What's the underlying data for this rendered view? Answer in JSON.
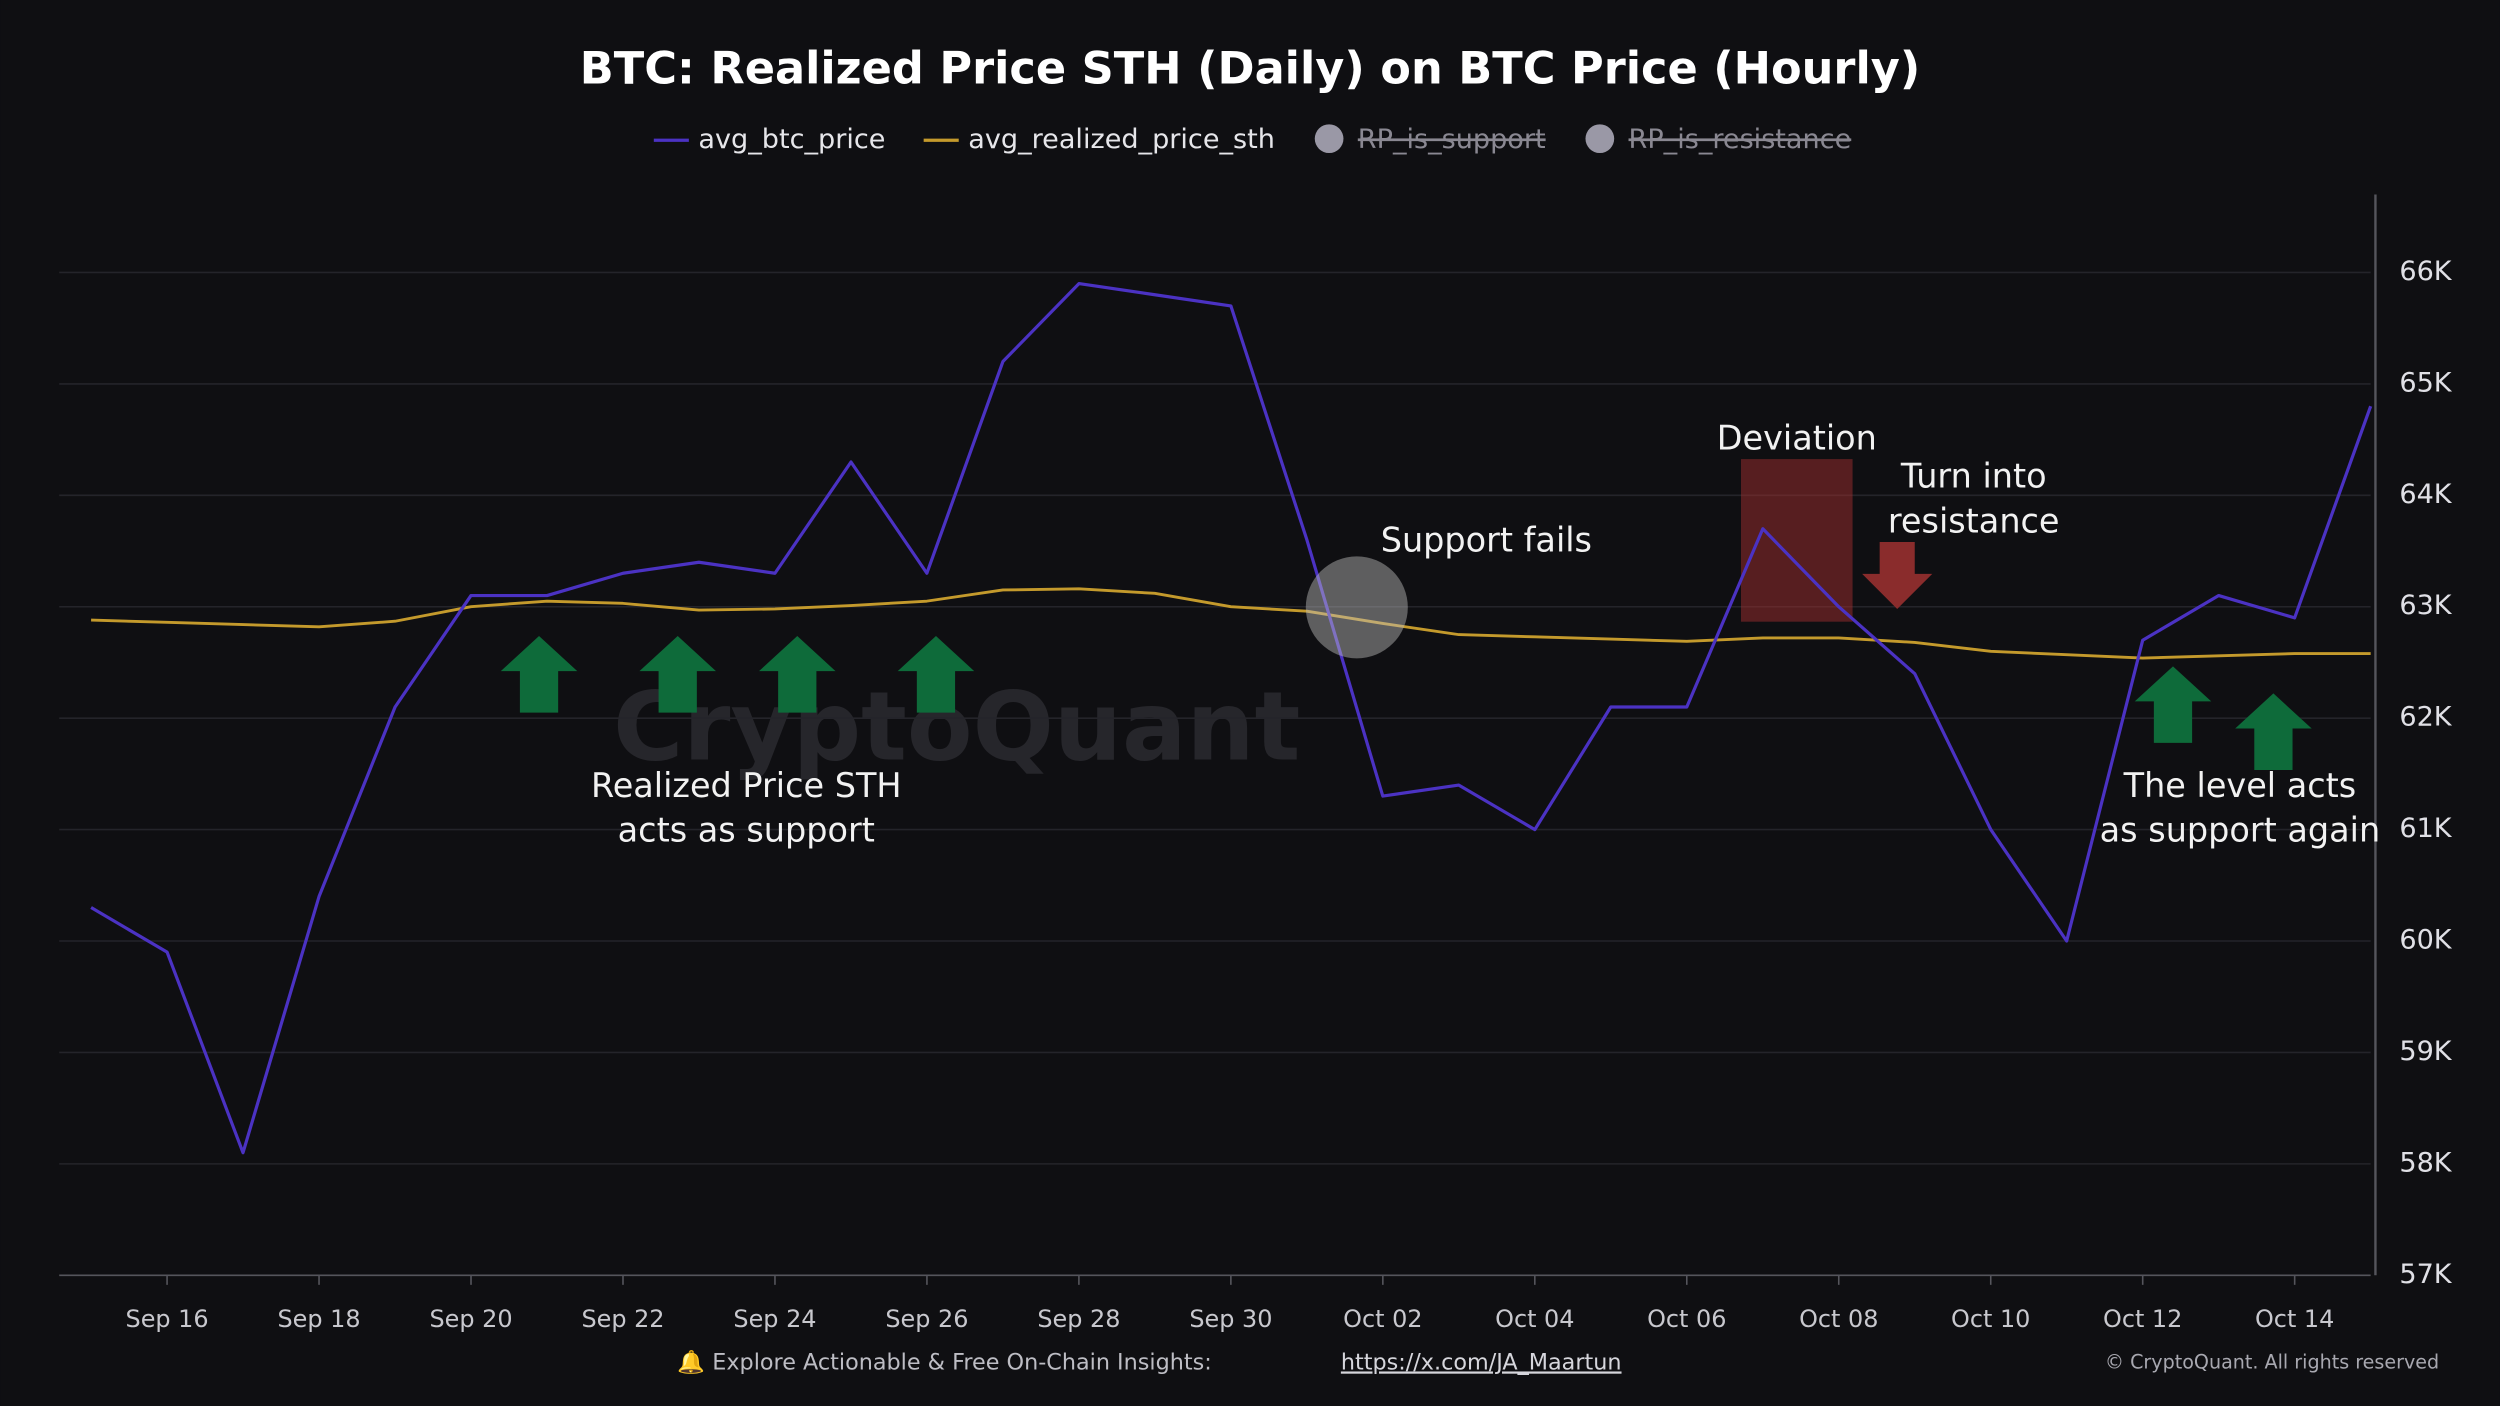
{
  "chart_data": {
    "type": "line",
    "title": "BTC: Realized Price STH (Daily) on BTC Price (Hourly)",
    "x": [
      "Sep 15",
      "Sep 16",
      "Sep 17",
      "Sep 18",
      "Sep 19",
      "Sep 20",
      "Sep 21",
      "Sep 22",
      "Sep 23",
      "Sep 24",
      "Sep 25",
      "Sep 26",
      "Sep 27",
      "Sep 28",
      "Sep 29",
      "Sep 30",
      "Oct 01",
      "Oct 02",
      "Oct 03",
      "Oct 04",
      "Oct 05",
      "Oct 06",
      "Oct 07",
      "Oct 08",
      "Oct 09",
      "Oct 10",
      "Oct 11",
      "Oct 12",
      "Oct 13",
      "Oct 14",
      "Oct 15"
    ],
    "series": [
      {
        "name": "avg_btc_price",
        "color": "#4b32c3",
        "values": [
          60300,
          59900,
          58100,
          60400,
          62100,
          63100,
          63100,
          63300,
          63400,
          63300,
          64300,
          63300,
          65200,
          65900,
          65800,
          65700,
          63600,
          61300,
          61400,
          61000,
          62100,
          62100,
          63700,
          63000,
          62400,
          61000,
          60000,
          62700,
          63100,
          62900,
          64800
        ]
      },
      {
        "name": "avg_realized_price_sth",
        "color": "#c49a2c",
        "values": [
          62880,
          62860,
          62840,
          62820,
          62870,
          63000,
          63050,
          63030,
          62970,
          62980,
          63010,
          63050,
          63150,
          63160,
          63120,
          63000,
          62960,
          62850,
          62750,
          62730,
          62710,
          62690,
          62720,
          62720,
          62680,
          62600,
          62570,
          62540,
          62560,
          62580,
          62580
        ]
      }
    ],
    "hidden_series": [
      {
        "name": "RP_is_support",
        "color": "#9a98a6"
      },
      {
        "name": "RP_is_resistance",
        "color": "#9a98a6"
      }
    ],
    "xlim": [
      "Sep 15",
      "Oct 15"
    ],
    "xticks": [
      "Sep 16",
      "Sep 18",
      "Sep 20",
      "Sep 22",
      "Sep 24",
      "Sep 26",
      "Sep 28",
      "Sep 30",
      "Oct 02",
      "Oct 04",
      "Oct 06",
      "Oct 08",
      "Oct 10",
      "Oct 12",
      "Oct 14"
    ],
    "ylim": [
      57000,
      66700
    ],
    "yticks": [
      {
        "value": 57000,
        "label": "57K"
      },
      {
        "value": 58000,
        "label": "58K"
      },
      {
        "value": 59000,
        "label": "59K"
      },
      {
        "value": 60000,
        "label": "60K"
      },
      {
        "value": 61000,
        "label": "61K"
      },
      {
        "value": 62000,
        "label": "62K"
      },
      {
        "value": 63000,
        "label": "63K"
      },
      {
        "value": 64000,
        "label": "64K"
      },
      {
        "value": 65000,
        "label": "65K"
      },
      {
        "value": 66000,
        "label": "66K"
      }
    ],
    "grid": true,
    "annotations": [
      {
        "text": [
          "Support fails"
        ]
      },
      {
        "text": [
          "Deviation"
        ]
      },
      {
        "text": [
          "Turn into",
          "resistance"
        ]
      },
      {
        "text": [
          "Realized Price STH",
          "acts as support"
        ]
      },
      {
        "text": [
          "The level acts",
          "as support again"
        ]
      }
    ],
    "watermark": "CryptoQuant",
    "footer": {
      "text": "🔔 Explore Actionable & Free On-Chain Insights: ",
      "link": "https://x.com/JA_Maartun",
      "copyright": "© CryptoQuant. All rights reserved"
    }
  }
}
